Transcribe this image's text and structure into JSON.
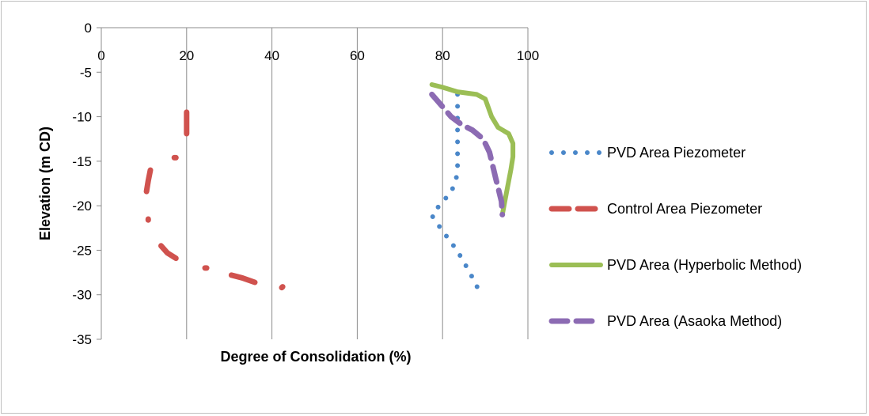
{
  "chart_data": {
    "type": "scatter",
    "title": "",
    "xlabel": "Degree of Consolidation (%)",
    "ylabel": "Elevation (m CD)",
    "xlim": [
      0,
      100
    ],
    "ylim": [
      -35,
      0
    ],
    "xticks": [
      0,
      20,
      40,
      60,
      80,
      100
    ],
    "yticks": [
      0,
      -5,
      -10,
      -15,
      -20,
      -25,
      -30,
      -35
    ],
    "x_axis_position": "top",
    "grid": "vertical",
    "legend_position": "right",
    "series": [
      {
        "name": "PVD Area Piezometer",
        "style": "dotted",
        "color": "#4a87c9",
        "points": [
          [
            83.5,
            -7.5
          ],
          [
            83.5,
            -9.0
          ],
          [
            83.5,
            -10.5
          ],
          [
            83.5,
            -12.3
          ],
          [
            83.5,
            -14.0
          ],
          [
            83.5,
            -15.6
          ],
          [
            83.2,
            -17.0
          ],
          [
            82.0,
            -18.5
          ],
          [
            79.5,
            -19.8
          ],
          [
            77.5,
            -21.1
          ],
          [
            79.5,
            -22.5
          ],
          [
            81.5,
            -23.8
          ],
          [
            83.5,
            -25.1
          ],
          [
            85.2,
            -26.5
          ],
          [
            86.8,
            -27.9
          ],
          [
            88.3,
            -29.3
          ]
        ]
      },
      {
        "name": "Control Area Piezometer",
        "style": "dashed",
        "color": "#d0524e",
        "segments": [
          [
            [
              20.0,
              -9.5
            ],
            [
              20.0,
              -11.9
            ]
          ],
          [
            [
              17.5,
              -14.6
            ],
            [
              17.1,
              -14.6
            ]
          ],
          [
            [
              11.5,
              -16.0
            ],
            [
              11.0,
              -17.2
            ],
            [
              10.6,
              -18.4
            ]
          ],
          [
            [
              11.0,
              -21.5
            ],
            [
              11.0,
              -21.6
            ]
          ],
          [
            [
              14.0,
              -24.5
            ],
            [
              15.5,
              -25.3
            ],
            [
              17.5,
              -25.9
            ]
          ],
          [
            [
              24.3,
              -27.0
            ],
            [
              24.7,
              -27.0
            ]
          ],
          [
            [
              30.5,
              -27.8
            ],
            [
              33.0,
              -28.1
            ],
            [
              36.0,
              -28.6
            ]
          ],
          [
            [
              42.5,
              -29.1
            ],
            [
              42.3,
              -29.2
            ]
          ]
        ]
      },
      {
        "name": "PVD Area (Hyperbolic Method)",
        "style": "solid",
        "color": "#9bbe55",
        "points": [
          [
            77.5,
            -6.4
          ],
          [
            80.0,
            -6.7
          ],
          [
            83.5,
            -7.2
          ],
          [
            88.0,
            -7.5
          ],
          [
            90.0,
            -8.0
          ],
          [
            91.5,
            -10.0
          ],
          [
            93.0,
            -11.2
          ],
          [
            95.5,
            -11.9
          ],
          [
            96.5,
            -13.0
          ],
          [
            96.5,
            -14.5
          ],
          [
            96.0,
            -16.0
          ],
          [
            95.0,
            -18.5
          ],
          [
            94.0,
            -21.0
          ]
        ]
      },
      {
        "name": "PVD Area (Asaoka Method)",
        "style": "dashed",
        "color": "#8c6bb3",
        "points": [
          [
            77.5,
            -7.5
          ],
          [
            79.5,
            -8.6
          ],
          [
            82.0,
            -10.0
          ],
          [
            84.5,
            -10.9
          ],
          [
            87.0,
            -11.5
          ],
          [
            89.5,
            -12.5
          ],
          [
            91.0,
            -14.0
          ],
          [
            92.5,
            -17.0
          ],
          [
            93.8,
            -19.5
          ],
          [
            94.0,
            -21.0
          ]
        ]
      }
    ]
  }
}
